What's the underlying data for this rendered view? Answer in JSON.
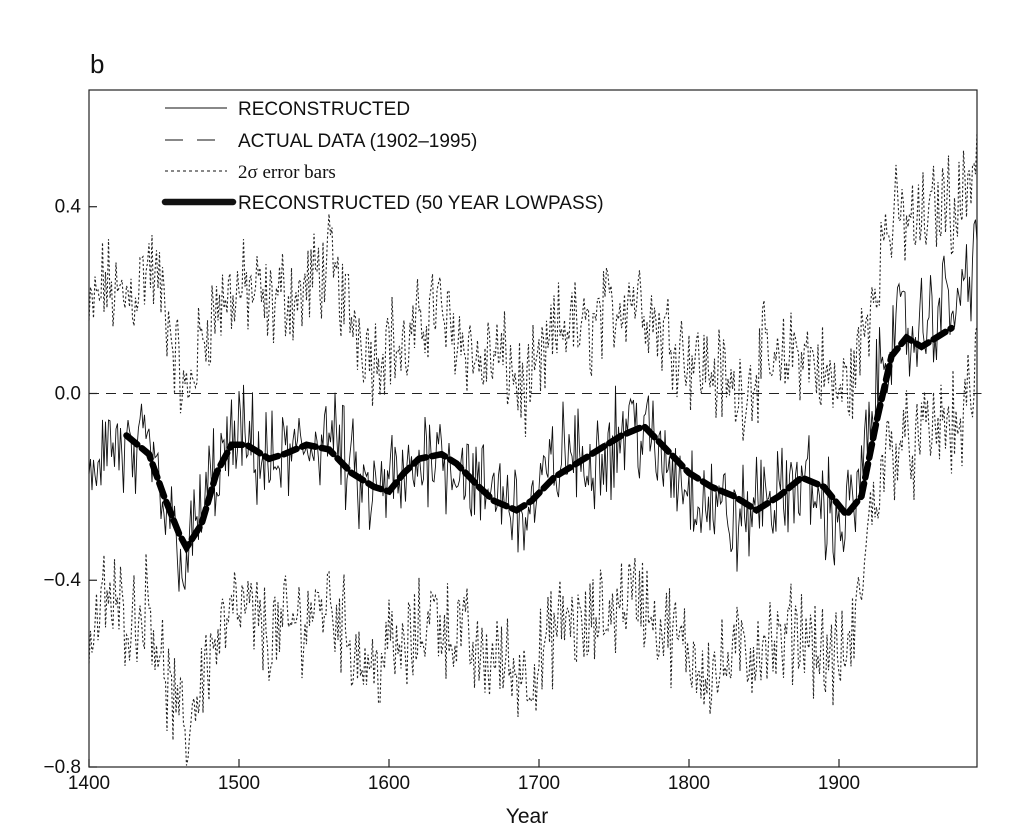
{
  "panel_label": "b",
  "chart_data": {
    "type": "line",
    "title": "",
    "xlabel": "Year",
    "ylabel": "",
    "xlim": [
      1400,
      1995
    ],
    "ylim": [
      -0.8,
      0.65
    ],
    "x_ticks": [
      1400,
      1500,
      1600,
      1700,
      1800,
      1900
    ],
    "y_ticks": [
      -0.8,
      -0.4,
      0.0,
      0.4
    ],
    "y_tick_labels": [
      "−0.8",
      "−0.4",
      "0.0",
      "0.4"
    ],
    "grid": false,
    "legend_position": "top-left",
    "legend": [
      {
        "key": "reconstructed",
        "label": "RECONSTRUCTED",
        "style": "thin-solid"
      },
      {
        "key": "actual",
        "label": "ACTUAL DATA (1902–1995)",
        "style": "long-dash"
      },
      {
        "key": "error",
        "label": "2σ error bars",
        "style": "dotted"
      },
      {
        "key": "lowpass",
        "label": "RECONSTRUCTED (50 YEAR LOWPASS)",
        "style": "thick-dash"
      }
    ],
    "series": [
      {
        "key": "reconstructed",
        "x": [
          1400,
          1410,
          1420,
          1430,
          1440,
          1450,
          1460,
          1465,
          1470,
          1480,
          1490,
          1500,
          1510,
          1520,
          1530,
          1540,
          1550,
          1560,
          1570,
          1580,
          1590,
          1600,
          1610,
          1620,
          1630,
          1640,
          1650,
          1660,
          1670,
          1680,
          1690,
          1700,
          1710,
          1720,
          1730,
          1740,
          1750,
          1760,
          1770,
          1780,
          1790,
          1800,
          1810,
          1820,
          1830,
          1840,
          1850,
          1860,
          1870,
          1880,
          1890,
          1900,
          1910,
          1920,
          1930,
          1940,
          1950,
          1960,
          1970,
          1980,
          1990,
          1995
        ],
        "values": [
          -0.2,
          -0.1,
          -0.12,
          -0.15,
          -0.12,
          -0.25,
          -0.32,
          -0.38,
          -0.3,
          -0.2,
          -0.14,
          -0.1,
          -0.12,
          -0.16,
          -0.14,
          -0.13,
          -0.1,
          -0.08,
          -0.14,
          -0.2,
          -0.23,
          -0.18,
          -0.2,
          -0.15,
          -0.1,
          -0.15,
          -0.15,
          -0.22,
          -0.2,
          -0.22,
          -0.27,
          -0.22,
          -0.15,
          -0.12,
          -0.16,
          -0.12,
          -0.1,
          -0.06,
          -0.08,
          -0.14,
          -0.16,
          -0.2,
          -0.22,
          -0.24,
          -0.28,
          -0.26,
          -0.2,
          -0.24,
          -0.18,
          -0.2,
          -0.24,
          -0.28,
          -0.24,
          -0.1,
          0.1,
          0.14,
          0.12,
          0.16,
          0.2,
          0.18,
          0.3,
          0.45
        ]
      },
      {
        "key": "actual",
        "x": [
          1400,
          1995
        ],
        "values": [
          0.0,
          0.0
        ]
      },
      {
        "key": "error_upper",
        "x": [
          1400,
          1410,
          1420,
          1430,
          1440,
          1450,
          1460,
          1465,
          1470,
          1480,
          1490,
          1500,
          1510,
          1520,
          1530,
          1540,
          1550,
          1560,
          1570,
          1580,
          1590,
          1600,
          1610,
          1620,
          1630,
          1640,
          1650,
          1660,
          1670,
          1680,
          1690,
          1700,
          1710,
          1720,
          1730,
          1740,
          1750,
          1760,
          1770,
          1780,
          1790,
          1800,
          1810,
          1820,
          1830,
          1840,
          1850,
          1860,
          1870,
          1880,
          1890,
          1900,
          1910,
          1920,
          1930,
          1940,
          1950,
          1960,
          1970,
          1980,
          1990,
          1995
        ],
        "values": [
          0.15,
          0.24,
          0.2,
          0.22,
          0.28,
          0.2,
          0.05,
          -0.02,
          0.06,
          0.16,
          0.2,
          0.22,
          0.22,
          0.18,
          0.22,
          0.2,
          0.25,
          0.28,
          0.2,
          0.14,
          0.08,
          0.12,
          0.08,
          0.14,
          0.2,
          0.14,
          0.12,
          0.06,
          0.08,
          0.06,
          0.0,
          0.04,
          0.12,
          0.16,
          0.12,
          0.16,
          0.18,
          0.22,
          0.2,
          0.14,
          0.12,
          0.08,
          0.06,
          0.04,
          0.0,
          0.02,
          0.08,
          0.04,
          0.1,
          0.08,
          0.04,
          0.0,
          0.04,
          0.18,
          0.34,
          0.38,
          0.36,
          0.38,
          0.42,
          0.4,
          0.5,
          0.6
        ]
      },
      {
        "key": "error_lower",
        "x": [
          1400,
          1410,
          1420,
          1430,
          1440,
          1450,
          1460,
          1465,
          1470,
          1480,
          1490,
          1500,
          1510,
          1520,
          1530,
          1540,
          1550,
          1560,
          1570,
          1580,
          1590,
          1600,
          1610,
          1620,
          1630,
          1640,
          1650,
          1660,
          1670,
          1680,
          1690,
          1700,
          1710,
          1720,
          1730,
          1740,
          1750,
          1760,
          1770,
          1780,
          1790,
          1800,
          1810,
          1820,
          1830,
          1840,
          1850,
          1860,
          1870,
          1880,
          1890,
          1900,
          1910,
          1920,
          1930,
          1940,
          1950,
          1960,
          1970,
          1980,
          1990,
          1995
        ],
        "values": [
          -0.55,
          -0.44,
          -0.46,
          -0.48,
          -0.44,
          -0.6,
          -0.7,
          -0.74,
          -0.66,
          -0.56,
          -0.5,
          -0.46,
          -0.48,
          -0.52,
          -0.5,
          -0.49,
          -0.46,
          -0.44,
          -0.5,
          -0.56,
          -0.59,
          -0.54,
          -0.56,
          -0.51,
          -0.46,
          -0.51,
          -0.51,
          -0.58,
          -0.56,
          -0.58,
          -0.6,
          -0.58,
          -0.51,
          -0.48,
          -0.52,
          -0.48,
          -0.46,
          -0.42,
          -0.44,
          -0.5,
          -0.52,
          -0.56,
          -0.58,
          -0.6,
          -0.56,
          -0.56,
          -0.52,
          -0.56,
          -0.5,
          -0.52,
          -0.56,
          -0.58,
          -0.52,
          -0.28,
          -0.14,
          -0.1,
          -0.12,
          -0.08,
          -0.06,
          -0.08,
          0.02,
          0.18
        ]
      },
      {
        "key": "lowpass",
        "x": [
          1425,
          1440,
          1450,
          1460,
          1465,
          1475,
          1485,
          1495,
          1505,
          1520,
          1530,
          1545,
          1560,
          1575,
          1590,
          1600,
          1610,
          1620,
          1635,
          1645,
          1660,
          1670,
          1685,
          1695,
          1710,
          1725,
          1740,
          1755,
          1770,
          1785,
          1800,
          1815,
          1830,
          1845,
          1860,
          1875,
          1890,
          1905,
          1915,
          1925,
          1935,
          1945,
          1955,
          1965,
          1975
        ],
        "values": [
          -0.09,
          -0.13,
          -0.22,
          -0.3,
          -0.33,
          -0.28,
          -0.17,
          -0.11,
          -0.11,
          -0.14,
          -0.13,
          -0.11,
          -0.12,
          -0.17,
          -0.2,
          -0.21,
          -0.17,
          -0.14,
          -0.13,
          -0.15,
          -0.2,
          -0.23,
          -0.25,
          -0.23,
          -0.18,
          -0.15,
          -0.12,
          -0.09,
          -0.07,
          -0.12,
          -0.17,
          -0.2,
          -0.22,
          -0.25,
          -0.22,
          -0.18,
          -0.2,
          -0.26,
          -0.22,
          -0.06,
          0.08,
          0.12,
          0.1,
          0.12,
          0.14
        ]
      }
    ]
  }
}
